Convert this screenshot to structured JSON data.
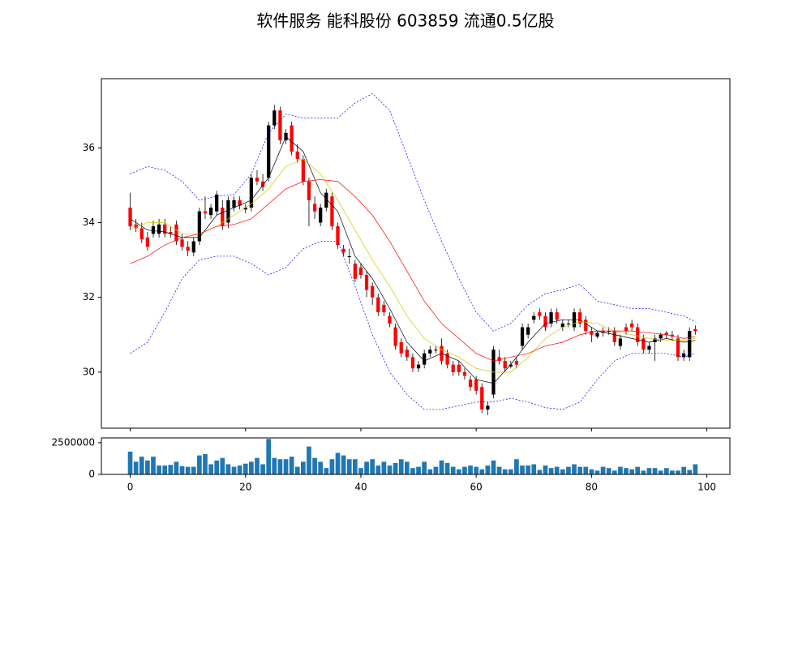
{
  "chart_data": [
    {
      "type": "candlestick",
      "title": "软件服务 能科股份 603859 流通0.5亿股",
      "xlim": [
        -5,
        104
      ],
      "ylim": [
        28.5,
        37.85
      ],
      "yticks": [
        30,
        32,
        34,
        36
      ],
      "up_color": "#000000",
      "down_color": "#ff0000",
      "ohlc": [
        [
          34.4,
          34.8,
          33.8,
          33.9
        ],
        [
          33.95,
          34.1,
          33.75,
          33.85
        ],
        [
          33.85,
          34.0,
          33.45,
          33.55
        ],
        [
          33.6,
          33.75,
          33.25,
          33.35
        ],
        [
          33.7,
          34.05,
          33.6,
          33.9
        ],
        [
          33.7,
          34.1,
          33.6,
          33.95
        ],
        [
          33.95,
          34.1,
          33.6,
          33.7
        ],
        [
          33.75,
          33.9,
          33.6,
          33.7
        ],
        [
          33.95,
          34.05,
          33.4,
          33.5
        ],
        [
          33.55,
          33.7,
          33.25,
          33.35
        ],
        [
          33.35,
          33.5,
          33.1,
          33.25
        ],
        [
          33.2,
          33.6,
          33.1,
          33.5
        ],
        [
          33.5,
          34.4,
          33.4,
          34.3
        ],
        [
          34.3,
          34.7,
          34.1,
          34.25
        ],
        [
          34.2,
          34.5,
          34.1,
          34.4
        ],
        [
          34.3,
          34.85,
          34.2,
          34.75
        ],
        [
          34.4,
          34.6,
          33.8,
          33.9
        ],
        [
          34.0,
          34.7,
          33.85,
          34.6
        ],
        [
          34.4,
          34.7,
          34.3,
          34.6
        ],
        [
          34.6,
          34.7,
          34.35,
          34.45
        ],
        [
          34.35,
          34.5,
          34.25,
          34.4
        ],
        [
          34.4,
          35.3,
          34.3,
          35.2
        ],
        [
          35.2,
          35.4,
          35.0,
          35.1
        ],
        [
          35.1,
          35.3,
          34.85,
          34.95
        ],
        [
          35.2,
          36.7,
          35.1,
          36.6
        ],
        [
          36.6,
          37.15,
          36.5,
          37.0
        ],
        [
          37.0,
          37.1,
          36.1,
          36.2
        ],
        [
          36.2,
          36.5,
          36.1,
          36.4
        ],
        [
          36.6,
          36.7,
          35.8,
          35.9
        ],
        [
          35.9,
          36.1,
          35.6,
          35.7
        ],
        [
          35.7,
          35.8,
          35.0,
          35.1
        ],
        [
          35.1,
          35.2,
          33.9,
          34.6
        ],
        [
          34.5,
          34.7,
          34.1,
          34.3
        ],
        [
          34.0,
          34.5,
          33.9,
          34.4
        ],
        [
          34.4,
          34.9,
          34.3,
          34.8
        ],
        [
          34.7,
          34.8,
          33.8,
          33.9
        ],
        [
          33.9,
          34.0,
          33.3,
          33.4
        ],
        [
          33.3,
          33.4,
          33.1,
          33.2
        ],
        [
          33.1,
          33.3,
          32.9,
          33.1
        ],
        [
          32.9,
          33.0,
          32.4,
          32.5
        ],
        [
          32.8,
          32.9,
          32.5,
          32.6
        ],
        [
          32.6,
          32.7,
          32.0,
          32.2
        ],
        [
          32.3,
          32.4,
          31.8,
          32.0
        ],
        [
          32.0,
          32.1,
          31.5,
          31.6
        ],
        [
          31.8,
          31.9,
          31.5,
          31.6
        ],
        [
          31.5,
          31.6,
          31.2,
          31.3
        ],
        [
          31.2,
          31.3,
          30.6,
          30.7
        ],
        [
          30.8,
          30.9,
          30.4,
          30.5
        ],
        [
          30.6,
          30.7,
          30.3,
          30.4
        ],
        [
          30.4,
          30.5,
          30.0,
          30.1
        ],
        [
          30.1,
          30.3,
          30.0,
          30.2
        ],
        [
          30.2,
          30.6,
          30.1,
          30.5
        ],
        [
          30.5,
          30.7,
          30.4,
          30.6
        ],
        [
          30.6,
          30.7,
          30.5,
          30.6
        ],
        [
          30.7,
          30.9,
          30.2,
          30.3
        ],
        [
          30.5,
          30.6,
          30.1,
          30.2
        ],
        [
          30.2,
          30.3,
          29.9,
          30.0
        ],
        [
          30.2,
          30.3,
          29.9,
          30.0
        ],
        [
          30.0,
          30.1,
          29.8,
          29.9
        ],
        [
          29.8,
          29.9,
          29.5,
          29.6
        ],
        [
          29.8,
          29.9,
          29.4,
          29.5
        ],
        [
          29.6,
          29.7,
          28.9,
          29.0
        ],
        [
          29.0,
          29.2,
          28.85,
          29.1
        ],
        [
          29.4,
          30.7,
          29.3,
          30.6
        ],
        [
          30.4,
          30.6,
          30.2,
          30.3
        ],
        [
          30.3,
          30.4,
          30.0,
          30.1
        ],
        [
          30.15,
          30.3,
          30.1,
          30.2
        ],
        [
          30.3,
          30.4,
          30.1,
          30.2
        ],
        [
          30.7,
          31.3,
          30.6,
          31.2
        ],
        [
          31.0,
          31.3,
          30.9,
          31.2
        ],
        [
          31.4,
          31.6,
          31.3,
          31.5
        ],
        [
          31.6,
          31.7,
          31.4,
          31.5
        ],
        [
          31.5,
          31.6,
          31.1,
          31.2
        ],
        [
          31.3,
          31.7,
          31.2,
          31.6
        ],
        [
          31.6,
          31.7,
          31.3,
          31.4
        ],
        [
          31.2,
          31.4,
          31.1,
          31.3
        ],
        [
          31.3,
          31.4,
          31.2,
          31.3
        ],
        [
          31.2,
          31.7,
          31.1,
          31.6
        ],
        [
          31.6,
          31.7,
          31.2,
          31.3
        ],
        [
          31.4,
          31.5,
          31.0,
          31.1
        ],
        [
          31.1,
          31.2,
          30.8,
          31.0
        ],
        [
          30.95,
          31.1,
          30.9,
          31.05
        ],
        [
          31.1,
          31.2,
          30.95,
          31.05
        ],
        [
          31.1,
          31.2,
          31.0,
          31.1
        ],
        [
          31.1,
          31.2,
          30.7,
          30.8
        ],
        [
          30.7,
          31.0,
          30.6,
          30.9
        ],
        [
          31.2,
          31.3,
          31.0,
          31.1
        ],
        [
          31.3,
          31.4,
          31.1,
          31.2
        ],
        [
          31.2,
          31.3,
          30.7,
          30.8
        ],
        [
          30.9,
          31.0,
          30.5,
          30.6
        ],
        [
          30.6,
          30.8,
          30.5,
          30.7
        ],
        [
          30.8,
          31.0,
          30.3,
          30.9
        ],
        [
          30.9,
          31.05,
          30.8,
          31.0
        ],
        [
          31.05,
          31.1,
          30.9,
          31.0
        ],
        [
          31.0,
          31.1,
          30.85,
          30.95
        ],
        [
          30.9,
          31.0,
          30.3,
          30.4
        ],
        [
          30.4,
          30.6,
          30.3,
          30.5
        ],
        [
          30.4,
          31.2,
          30.3,
          31.1
        ],
        [
          31.15,
          31.25,
          31.0,
          31.1
        ]
      ],
      "x": [
        0,
        3,
        6,
        9,
        12,
        15,
        18,
        21,
        24,
        27,
        30,
        33,
        36,
        39,
        42,
        45,
        48,
        51,
        54,
        57,
        60,
        63,
        66,
        69,
        72,
        75,
        78,
        81,
        84,
        87,
        90,
        93,
        96,
        98
      ],
      "series": [
        {
          "color": "#000000",
          "dash": false,
          "values": [
            34.1,
            33.8,
            33.75,
            33.6,
            33.6,
            34.2,
            34.4,
            34.6,
            35.2,
            36.3,
            35.9,
            34.8,
            34.3,
            33.1,
            32.5,
            31.7,
            30.8,
            30.3,
            30.5,
            30.3,
            29.8,
            29.7,
            30.2,
            30.8,
            31.3,
            31.4,
            31.4,
            31.1,
            31.0,
            30.9,
            30.8,
            30.9,
            30.8,
            30.85
          ]
        },
        {
          "color": "#cccc00",
          "dash": false,
          "values": [
            33.8,
            34.0,
            34.0,
            33.7,
            33.7,
            33.9,
            34.2,
            34.5,
            34.9,
            35.5,
            35.7,
            35.3,
            34.6,
            33.8,
            33.0,
            32.3,
            31.5,
            30.9,
            30.6,
            30.4,
            30.1,
            30.0,
            30.0,
            30.4,
            30.9,
            31.2,
            31.35,
            31.3,
            31.1,
            31.0,
            30.9,
            30.85,
            30.85,
            30.9
          ]
        },
        {
          "color": "#ff0000",
          "dash": false,
          "values": [
            32.9,
            33.1,
            33.4,
            33.6,
            33.7,
            33.9,
            33.95,
            34.1,
            34.5,
            34.9,
            35.1,
            35.15,
            35.1,
            34.7,
            34.2,
            33.5,
            32.7,
            31.9,
            31.3,
            30.9,
            30.5,
            30.3,
            30.4,
            30.5,
            30.7,
            30.8,
            31.0,
            31.1,
            31.1,
            31.1,
            31.05,
            31.0,
            30.9,
            30.95
          ]
        },
        {
          "color": "#0000ff",
          "dash": true,
          "values": [
            35.3,
            35.5,
            35.4,
            35.1,
            34.6,
            34.7,
            34.75,
            35.3,
            36.4,
            36.9,
            36.8,
            36.8,
            36.8,
            37.2,
            37.45,
            37.0,
            35.8,
            34.6,
            33.5,
            32.5,
            31.6,
            31.1,
            31.3,
            31.8,
            32.1,
            32.2,
            32.35,
            31.9,
            31.8,
            31.7,
            31.7,
            31.6,
            31.5,
            31.35
          ]
        },
        {
          "color": "#0000ff",
          "dash": true,
          "values": [
            30.5,
            30.8,
            31.6,
            32.5,
            33.0,
            33.1,
            33.1,
            32.9,
            32.6,
            32.8,
            33.3,
            33.5,
            33.5,
            32.3,
            31.0,
            30.0,
            29.4,
            29.0,
            29.0,
            29.1,
            29.2,
            29.2,
            29.3,
            29.2,
            29.05,
            29.0,
            29.2,
            29.8,
            30.3,
            30.5,
            30.5,
            30.5,
            30.4,
            30.5
          ]
        }
      ]
    },
    {
      "type": "bar",
      "color": "#1f77b4",
      "xlim": [
        -5,
        104
      ],
      "ylim": [
        0,
        2880000
      ],
      "yticks": [
        0,
        2500000
      ],
      "xticks": [
        0,
        20,
        40,
        60,
        80,
        100
      ],
      "values": [
        1800000,
        1000000,
        1400000,
        1100000,
        1400000,
        700000,
        700000,
        750000,
        1000000,
        650000,
        600000,
        600000,
        1500000,
        1600000,
        800000,
        1100000,
        1300000,
        800000,
        600000,
        700000,
        850000,
        1000000,
        1300000,
        800000,
        2800000,
        1300000,
        1200000,
        1200000,
        1400000,
        600000,
        1000000,
        2200000,
        1300000,
        1000000,
        500000,
        1200000,
        1700000,
        1500000,
        1200000,
        1200000,
        500000,
        1000000,
        1200000,
        700000,
        1000000,
        700000,
        900000,
        1200000,
        1000000,
        500000,
        600000,
        1000000,
        400000,
        600000,
        1100000,
        900000,
        600000,
        400000,
        600000,
        700000,
        600000,
        400000,
        700000,
        1100000,
        600000,
        400000,
        400000,
        1200000,
        700000,
        700000,
        800000,
        350000,
        700000,
        500000,
        600000,
        400000,
        600000,
        800000,
        600000,
        600000,
        400000,
        300000,
        600000,
        500000,
        300000,
        600000,
        500000,
        400000,
        600000,
        300000,
        500000,
        500000,
        300000,
        500000,
        300000,
        300000,
        600000,
        350000,
        800000
      ]
    }
  ]
}
